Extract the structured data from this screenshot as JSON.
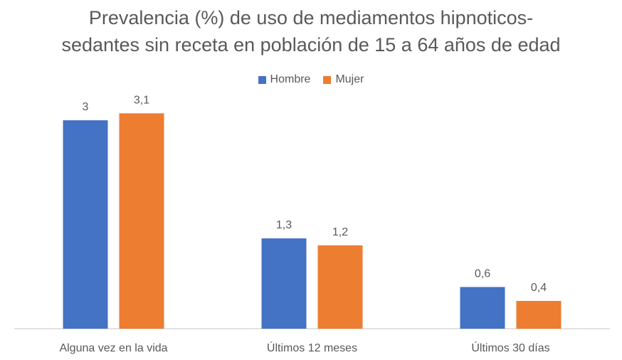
{
  "chart_data": {
    "type": "bar",
    "title": "Prevalencia (%) de uso de mediamentos hipnoticos-sedantes sin receta en población de 15 a 64 años de edad",
    "title_lines": [
      "Prevalencia (%) de uso de mediamentos hipnoticos-",
      "sedantes sin receta en población de 15 a 64 años de edad"
    ],
    "categories": [
      "Alguna vez en la vida",
      "Últimos 12 meses",
      "Últimos 30 días"
    ],
    "series": [
      {
        "name": "Hombre",
        "values": [
          3,
          1.3,
          0.6
        ],
        "labels": [
          "3",
          "1,3",
          "0,6"
        ],
        "color": "#4472C4"
      },
      {
        "name": "Mujer",
        "values": [
          3.1,
          1.2,
          0.4
        ],
        "labels": [
          "3,1",
          "1,2",
          "0,4"
        ],
        "color": "#ED7D31"
      }
    ],
    "xlabel": "",
    "ylabel": "",
    "ylim": [
      0,
      3.4
    ],
    "grid": false,
    "legend_position": "top",
    "axis_color": "#D9D9D9",
    "text_color": "#595959"
  }
}
